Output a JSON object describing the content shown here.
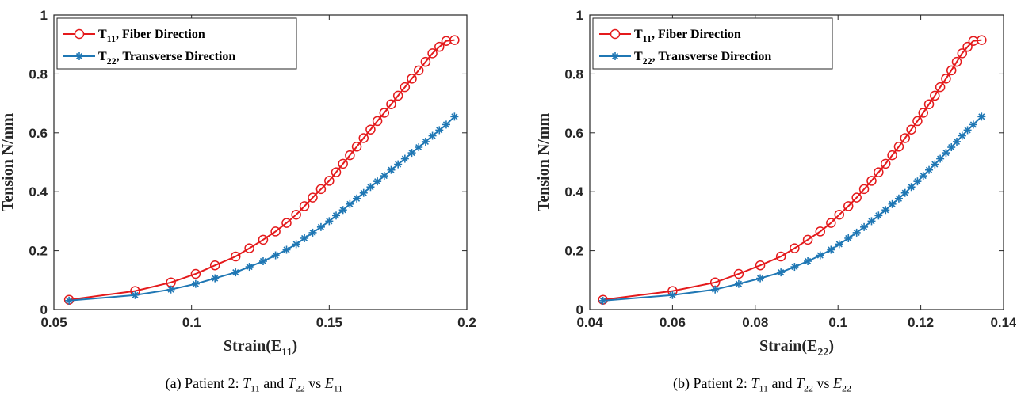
{
  "colors": {
    "t11": "#e41a1c",
    "t22": "#1f77b4",
    "axis": "#262626"
  },
  "chart_data": [
    {
      "type": "line",
      "ylabel": "Tension  N/mm",
      "xlabel_main": "Strain(E",
      "xlabel_sub": "11",
      "xlabel_tail": ")",
      "xlim": [
        0.05,
        0.2
      ],
      "ylim": [
        0,
        1
      ],
      "xticks": [
        0.05,
        0.1,
        0.15,
        0.2
      ],
      "xtick_labels": [
        "0.05",
        "0.1",
        "0.15",
        "0.2"
      ],
      "yticks": [
        0,
        0.2,
        0.4,
        0.6,
        0.8,
        1
      ],
      "ytick_labels": [
        "0",
        "0.2",
        "0.4",
        "0.6",
        "0.8",
        "1"
      ],
      "legend_position": "top-left",
      "caption": {
        "prefix": "(a) Patient 2: ",
        "v1": "T",
        "v1sub": "11",
        "and": " and ",
        "v2": "T",
        "v2sub": "22",
        "vs": " vs ",
        "v3": "E",
        "v3sub": "11"
      },
      "series": [
        {
          "name_main": "T",
          "name_sub": "11",
          "name_tail": ", Fiber Direction",
          "marker": "circle",
          "color": "#e41a1c",
          "x": [
            0.0555,
            0.0795,
            0.0925,
            0.1015,
            0.1085,
            0.116,
            0.121,
            0.126,
            0.1305,
            0.1345,
            0.138,
            0.141,
            0.144,
            0.147,
            0.15,
            0.1525,
            0.155,
            0.1575,
            0.16,
            0.1625,
            0.165,
            0.1675,
            0.17,
            0.1725,
            0.175,
            0.1775,
            0.18,
            0.1825,
            0.185,
            0.1875,
            0.19,
            0.1925,
            0.1955
          ],
          "y": [
            0.033,
            0.063,
            0.092,
            0.121,
            0.15,
            0.18,
            0.208,
            0.237,
            0.265,
            0.294,
            0.322,
            0.351,
            0.38,
            0.409,
            0.437,
            0.466,
            0.495,
            0.524,
            0.553,
            0.582,
            0.611,
            0.64,
            0.668,
            0.697,
            0.726,
            0.755,
            0.784,
            0.812,
            0.841,
            0.87,
            0.892,
            0.912,
            0.915
          ]
        },
        {
          "name_main": "T",
          "name_sub": "22",
          "name_tail": ", Transverse Direction",
          "marker": "asterisk",
          "color": "#1f77b4",
          "x": [
            0.0555,
            0.0795,
            0.0925,
            0.1015,
            0.1085,
            0.116,
            0.121,
            0.126,
            0.1305,
            0.1345,
            0.138,
            0.141,
            0.144,
            0.147,
            0.15,
            0.1525,
            0.155,
            0.1575,
            0.16,
            0.1625,
            0.165,
            0.1675,
            0.17,
            0.1725,
            0.175,
            0.1775,
            0.18,
            0.1825,
            0.185,
            0.1875,
            0.19,
            0.1925,
            0.1955
          ],
          "y": [
            0.03,
            0.049,
            0.068,
            0.087,
            0.106,
            0.126,
            0.145,
            0.164,
            0.184,
            0.203,
            0.222,
            0.242,
            0.261,
            0.28,
            0.3,
            0.319,
            0.338,
            0.358,
            0.377,
            0.396,
            0.416,
            0.435,
            0.454,
            0.474,
            0.493,
            0.512,
            0.532,
            0.551,
            0.57,
            0.59,
            0.609,
            0.628,
            0.655
          ]
        }
      ]
    },
    {
      "type": "line",
      "ylabel": "Tension  N/mm",
      "xlabel_main": "Strain(E",
      "xlabel_sub": "22",
      "xlabel_tail": ")",
      "xlim": [
        0.04,
        0.14
      ],
      "ylim": [
        0,
        1
      ],
      "xticks": [
        0.04,
        0.06,
        0.08,
        0.1,
        0.12,
        0.14
      ],
      "xtick_labels": [
        "0.04",
        "0.06",
        "0.08",
        "0.1",
        "0.12",
        "0.14"
      ],
      "yticks": [
        0,
        0.2,
        0.4,
        0.6,
        0.8,
        1
      ],
      "ytick_labels": [
        "0",
        "0.2",
        "0.4",
        "0.6",
        "0.8",
        "1"
      ],
      "legend_position": "top-left",
      "caption": {
        "prefix": "(b) Patient 2: ",
        "v1": "T",
        "v1sub": "11",
        "and": " and ",
        "v2": "T",
        "v2sub": "22",
        "vs": " vs ",
        "v3": "E",
        "v3sub": "22"
      },
      "series": [
        {
          "name_main": "T",
          "name_sub": "11",
          "name_tail": ", Fiber Direction",
          "marker": "circle",
          "color": "#e41a1c",
          "x": [
            0.0432,
            0.06,
            0.0703,
            0.076,
            0.0812,
            0.0862,
            0.0895,
            0.0927,
            0.0957,
            0.0983,
            0.1003,
            0.1025,
            0.1045,
            0.1063,
            0.1081,
            0.1098,
            0.1115,
            0.1131,
            0.1147,
            0.1162,
            0.1177,
            0.1192,
            0.1206,
            0.122,
            0.1234,
            0.1247,
            0.1261,
            0.1274,
            0.1287,
            0.13,
            0.1313,
            0.1327,
            0.1347
          ],
          "y": [
            0.033,
            0.063,
            0.092,
            0.121,
            0.15,
            0.18,
            0.208,
            0.237,
            0.265,
            0.294,
            0.322,
            0.351,
            0.38,
            0.409,
            0.437,
            0.466,
            0.495,
            0.524,
            0.553,
            0.582,
            0.611,
            0.64,
            0.668,
            0.697,
            0.726,
            0.755,
            0.784,
            0.812,
            0.841,
            0.87,
            0.892,
            0.912,
            0.915
          ]
        },
        {
          "name_main": "T",
          "name_sub": "22",
          "name_tail": ", Transverse Direction",
          "marker": "asterisk",
          "color": "#1f77b4",
          "x": [
            0.0432,
            0.06,
            0.0703,
            0.076,
            0.0812,
            0.0862,
            0.0895,
            0.0927,
            0.0957,
            0.0983,
            0.1003,
            0.1025,
            0.1045,
            0.1063,
            0.1081,
            0.1098,
            0.1115,
            0.1131,
            0.1147,
            0.1162,
            0.1177,
            0.1192,
            0.1206,
            0.122,
            0.1234,
            0.1247,
            0.1261,
            0.1274,
            0.1287,
            0.13,
            0.1313,
            0.1327,
            0.1347
          ],
          "y": [
            0.03,
            0.049,
            0.068,
            0.087,
            0.106,
            0.126,
            0.145,
            0.164,
            0.184,
            0.203,
            0.222,
            0.242,
            0.261,
            0.28,
            0.3,
            0.319,
            0.338,
            0.358,
            0.377,
            0.396,
            0.416,
            0.435,
            0.454,
            0.474,
            0.493,
            0.512,
            0.532,
            0.551,
            0.57,
            0.59,
            0.609,
            0.628,
            0.655
          ]
        }
      ]
    }
  ]
}
